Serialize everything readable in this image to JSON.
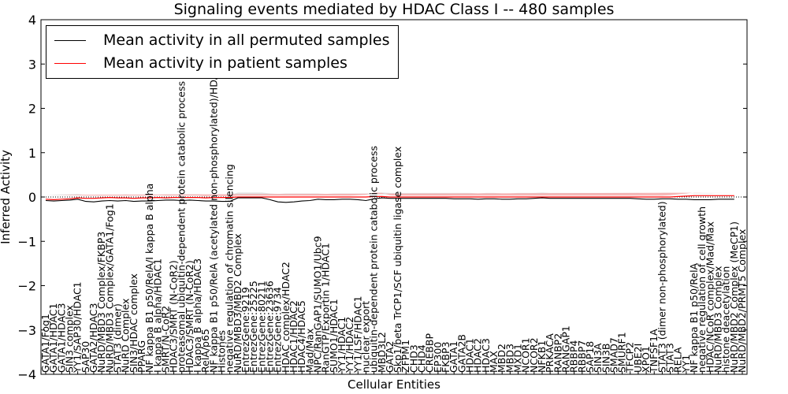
{
  "chart_data": {
    "type": "line",
    "title": "Signaling events mediated by HDAC Class I -- 480 samples",
    "xlabel": "Cellular Entities",
    "ylabel": "Inferred Activity",
    "ylim": [
      -4,
      4
    ],
    "yticks": [
      -4,
      -3,
      -2,
      -1,
      0,
      1,
      2,
      3,
      4
    ],
    "legend_position": "top-left",
    "series": [
      {
        "name": "Mean activity in all permuted samples",
        "color": "#000000",
        "band_color": "#c8c8c8"
      },
      {
        "name": "Mean activity in patient samples",
        "color": "#ff0000",
        "band_color": "#f4a0a0"
      }
    ],
    "categories": [
      "GATA1/Fog1",
      "GATA1/HDAC1",
      "GATA1/HDAC3",
      "SIN3 complex",
      "YY1/SAP30/HDAC1",
      "SAP30",
      "GATA2/HDAC3",
      "NuRD/MBD3 Complex/FKBP3",
      "NuRD/MBD3 Complex/GATA1/Fog1",
      "STAT3 (dimer)",
      "NuRD Complex",
      "SIN3/HDAC complex",
      "PPARG",
      "NF kappa B1 p50/RelA/I kappa B alpha",
      "I kappa B alpha/HDAC1",
      "SMRT/N-CoR2",
      "HDAC3/SMRT (N-CoR2)",
      "proteasomal ubiquitin-dependent protein catabolic process",
      "HDAC3/SMRT (N-CoR2)",
      "I kappa B alpha/HDAC3",
      "RelA/p65",
      "NF kappa B1 p50/RelA (acetylated non-phosphorylated)/HDAC3",
      "Histones",
      "negative regulation of chromatin silencing",
      "NuRD/MBD3/MBD2 Complex",
      "EntrezGene:9219",
      "EntrezGene:25225",
      "EntrezGene:80211",
      "EntrezGene:23636",
      "EntrezGene:9734",
      "HDAC complex/HDAC2",
      "HDAC1/HDAC2",
      "HDAC4/HDAC5",
      "Mad/Max",
      "NPC/RanGAP1/SUMO1/Ubc9",
      "RanGTP/Exportin 1/HDAC1",
      "SUMO1/HDAC1",
      "YY1/HDAC1",
      "YY1/HDAC2",
      "YY1/LSF/HDAC1",
      "nuclear export",
      "ubiquitin-dependent protein catabolic process",
      "MBD3L2",
      "GATA2",
      "Skp1/beta TrCP1/SCF ubiquitin ligase complex",
      "ZFPM1",
      "CHD3",
      "CHD4",
      "CREBBP",
      "EP300",
      "FKBP3",
      "GATA1",
      "GATA2B",
      "HDAC1",
      "HDAC2",
      "HDAC3",
      "MAX",
      "MBD2",
      "MBD3",
      "MXD1",
      "NCOR1",
      "NCOR2",
      "NFKB1",
      "PRKACA",
      "RANBP2",
      "RANGAP1",
      "RBBP4",
      "RBBP7",
      "SAP18",
      "SIN3A",
      "SIN3B",
      "SMAD7",
      "SMURF1",
      "TFCP2",
      "UBE2I",
      "XPO1",
      "TNFSF1A",
      "STAT3 (dimer non-phosphorylated)",
      "STAT3",
      "RELA",
      "YY1",
      "NF kappa B1 p50/RelA",
      "negative regulation of cell growth",
      "HDAC/NCoR complex/Mad/Max",
      "NuRD/MBD3 Complex",
      "histone deacetylation",
      "NuRD/MBD2 Complex (MeCP1)",
      "NuRD/MBD2/PRMT5 Complex"
    ],
    "patient_mean": [
      -0.05,
      -0.06,
      -0.05,
      -0.04,
      -0.02,
      -0.03,
      -0.03,
      -0.02,
      -0.01,
      -0.02,
      -0.02,
      -0.03,
      -0.02,
      -0.02,
      -0.01,
      -0.02,
      -0.01,
      -0.01,
      -0.01,
      -0.01,
      -0.02,
      -0.01,
      -0.01,
      -0.01,
      0.0,
      0.0,
      0.0,
      0.0,
      0.0,
      0.0,
      0.0,
      0.0,
      0.0,
      0.0,
      0.0,
      0.0,
      0.0,
      0.0,
      0.0,
      0.0,
      0.0,
      0.01,
      0.01,
      0.0,
      0.0,
      0.0,
      0.0,
      0.0,
      0.0,
      0.0,
      0.0,
      0.0,
      0.0,
      0.0,
      0.0,
      0.0,
      0.0,
      0.0,
      0.0,
      0.0,
      0.0,
      0.0,
      0.0,
      0.0,
      0.0,
      0.0,
      0.0,
      0.0,
      0.0,
      0.0,
      0.0,
      0.0,
      0.0,
      0.0,
      0.0,
      0.0,
      0.0,
      0.0,
      0.0,
      0.01,
      0.02,
      0.03,
      0.03,
      0.03,
      0.03,
      0.03,
      0.03
    ],
    "patient_band": [
      0.1,
      0.11,
      0.1,
      0.08,
      0.06,
      0.06,
      0.06,
      0.05,
      0.04,
      0.05,
      0.05,
      0.06,
      0.05,
      0.05,
      0.05,
      0.05,
      0.04,
      0.04,
      0.04,
      0.04,
      0.04,
      0.04,
      0.03,
      0.03,
      0.03,
      0.03,
      0.03,
      0.03,
      0.03,
      0.03,
      0.03,
      0.03,
      0.03,
      0.03,
      0.03,
      0.03,
      0.03,
      0.03,
      0.03,
      0.04,
      0.05,
      0.09,
      0.08,
      0.04,
      0.03,
      0.03,
      0.03,
      0.03,
      0.03,
      0.03,
      0.03,
      0.03,
      0.03,
      0.03,
      0.03,
      0.03,
      0.03,
      0.03,
      0.03,
      0.03,
      0.03,
      0.03,
      0.03,
      0.03,
      0.03,
      0.03,
      0.03,
      0.03,
      0.03,
      0.03,
      0.03,
      0.03,
      0.03,
      0.03,
      0.03,
      0.03,
      0.03,
      0.03,
      0.04,
      0.05,
      0.06,
      0.07,
      0.07,
      0.07,
      0.07,
      0.07,
      0.07
    ],
    "permuted_mean": [
      -0.08,
      -0.09,
      -0.08,
      -0.07,
      -0.05,
      -0.1,
      -0.11,
      -0.09,
      -0.08,
      -0.09,
      -0.08,
      -0.1,
      -0.09,
      -0.09,
      -0.08,
      -0.07,
      -0.07,
      -0.08,
      -0.07,
      -0.08,
      -0.09,
      -0.09,
      -0.1,
      -0.1,
      -0.02,
      -0.02,
      -0.02,
      -0.02,
      -0.06,
      -0.11,
      -0.12,
      -0.11,
      -0.09,
      -0.08,
      -0.05,
      -0.06,
      -0.06,
      -0.05,
      -0.05,
      -0.06,
      -0.08,
      -0.04,
      -0.02,
      -0.03,
      -0.03,
      -0.03,
      -0.03,
      -0.03,
      -0.03,
      -0.03,
      -0.03,
      -0.04,
      -0.04,
      -0.04,
      -0.05,
      -0.04,
      -0.04,
      -0.05,
      -0.05,
      -0.04,
      -0.04,
      -0.03,
      -0.02,
      -0.03,
      -0.03,
      -0.03,
      -0.03,
      -0.03,
      -0.03,
      -0.03,
      -0.03,
      -0.03,
      -0.03,
      -0.03,
      -0.04,
      -0.05,
      -0.05,
      -0.04,
      -0.04,
      -0.05,
      -0.05,
      -0.06,
      -0.06,
      -0.06,
      -0.05,
      -0.05,
      -0.05
    ],
    "permuted_band": [
      0.12,
      0.14,
      0.14,
      0.13,
      0.12,
      0.14,
      0.15,
      0.14,
      0.13,
      0.14,
      0.14,
      0.15,
      0.14,
      0.14,
      0.13,
      0.13,
      0.13,
      0.14,
      0.13,
      0.14,
      0.14,
      0.14,
      0.15,
      0.15,
      0.12,
      0.12,
      0.12,
      0.12,
      0.14,
      0.18,
      0.2,
      0.19,
      0.17,
      0.16,
      0.13,
      0.13,
      0.14,
      0.13,
      0.13,
      0.14,
      0.16,
      0.13,
      0.12,
      0.12,
      0.12,
      0.12,
      0.12,
      0.12,
      0.12,
      0.12,
      0.12,
      0.13,
      0.13,
      0.13,
      0.13,
      0.13,
      0.13,
      0.13,
      0.13,
      0.13,
      0.13,
      0.12,
      0.12,
      0.12,
      0.12,
      0.12,
      0.12,
      0.12,
      0.12,
      0.12,
      0.12,
      0.12,
      0.12,
      0.12,
      0.13,
      0.13,
      0.13,
      0.13,
      0.13,
      0.13,
      0.13,
      0.13,
      0.13,
      0.13,
      0.13,
      0.13,
      0.13
    ]
  }
}
